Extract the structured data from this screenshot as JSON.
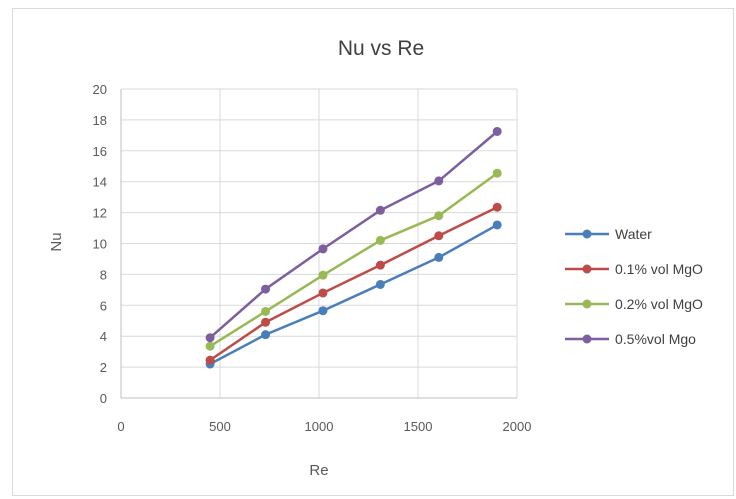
{
  "chart_data": {
    "type": "line",
    "title": "Nu vs Re",
    "xlabel": "Re",
    "ylabel": "Nu",
    "xlim": [
      0,
      2000
    ],
    "ylim": [
      0,
      20
    ],
    "xticks": [
      0,
      500,
      1000,
      1500,
      2000
    ],
    "yticks": [
      0,
      2,
      4,
      6,
      8,
      10,
      12,
      14,
      16,
      18,
      20
    ],
    "grid": true,
    "legend": "right",
    "markers": true,
    "x": [
      450,
      730,
      1020,
      1310,
      1605,
      1900
    ],
    "series": [
      {
        "name": "Water",
        "color": "#4a7ebb",
        "values": [
          2.2,
          4.1,
          5.65,
          7.35,
          9.1,
          11.2
        ]
      },
      {
        "name": "0.1% vol MgO",
        "color": "#be4b48",
        "values": [
          2.45,
          4.9,
          6.8,
          8.6,
          10.5,
          12.35
        ]
      },
      {
        "name": "0.2% vol MgO",
        "color": "#98b954",
        "values": [
          3.35,
          5.6,
          7.95,
          10.2,
          11.8,
          14.55
        ]
      },
      {
        "name": "0.5%vol Mgo",
        "color": "#7d5fa0",
        "values": [
          3.9,
          7.05,
          9.65,
          12.15,
          14.05,
          17.25
        ]
      }
    ]
  }
}
